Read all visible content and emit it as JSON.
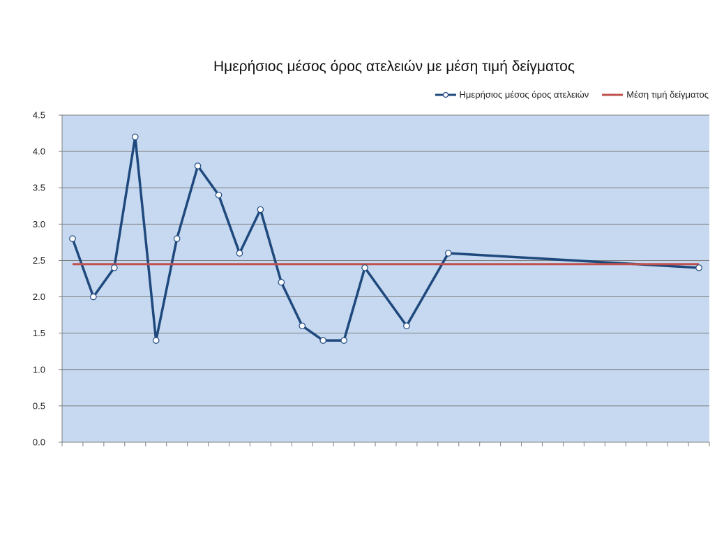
{
  "chart_data": {
    "type": "line",
    "title": "Ημερήσιος μέσος όρος ατελειών με μέση τιμή δείγματος",
    "xlabel": "",
    "ylabel": "",
    "ylim": [
      0,
      4.5
    ],
    "yticks": [
      "0.0",
      "0.5",
      "1.0",
      "1.5",
      "2.0",
      "2.5",
      "3.0",
      "3.5",
      "4.0",
      "4.5"
    ],
    "x_count": 31,
    "grid": true,
    "legend_position": "top-right",
    "plot_background": "#c6d9f1",
    "series": [
      {
        "name": "Ημερήσιος μέσος όρος ατελειών",
        "color": "#1f497d",
        "markers": true,
        "points": [
          {
            "x": 1,
            "y": 2.8
          },
          {
            "x": 2,
            "y": 2.0
          },
          {
            "x": 3,
            "y": 2.4
          },
          {
            "x": 4,
            "y": 4.2
          },
          {
            "x": 5,
            "y": 1.4
          },
          {
            "x": 6,
            "y": 2.8
          },
          {
            "x": 7,
            "y": 3.8
          },
          {
            "x": 8,
            "y": 3.4
          },
          {
            "x": 9,
            "y": 2.6
          },
          {
            "x": 10,
            "y": 3.2
          },
          {
            "x": 11,
            "y": 2.2
          },
          {
            "x": 12,
            "y": 1.6
          },
          {
            "x": 13,
            "y": 1.4
          },
          {
            "x": 14,
            "y": 1.4
          },
          {
            "x": 15,
            "y": 2.4
          },
          {
            "x": 17,
            "y": 1.6
          },
          {
            "x": 19,
            "y": 2.6
          },
          {
            "x": 31,
            "y": 2.4
          }
        ]
      },
      {
        "name": "Μέση τιμή δείγματος",
        "color": "#c0504d",
        "markers": false,
        "points": [
          {
            "x": 1,
            "y": 2.45
          },
          {
            "x": 31,
            "y": 2.45
          }
        ]
      }
    ]
  }
}
